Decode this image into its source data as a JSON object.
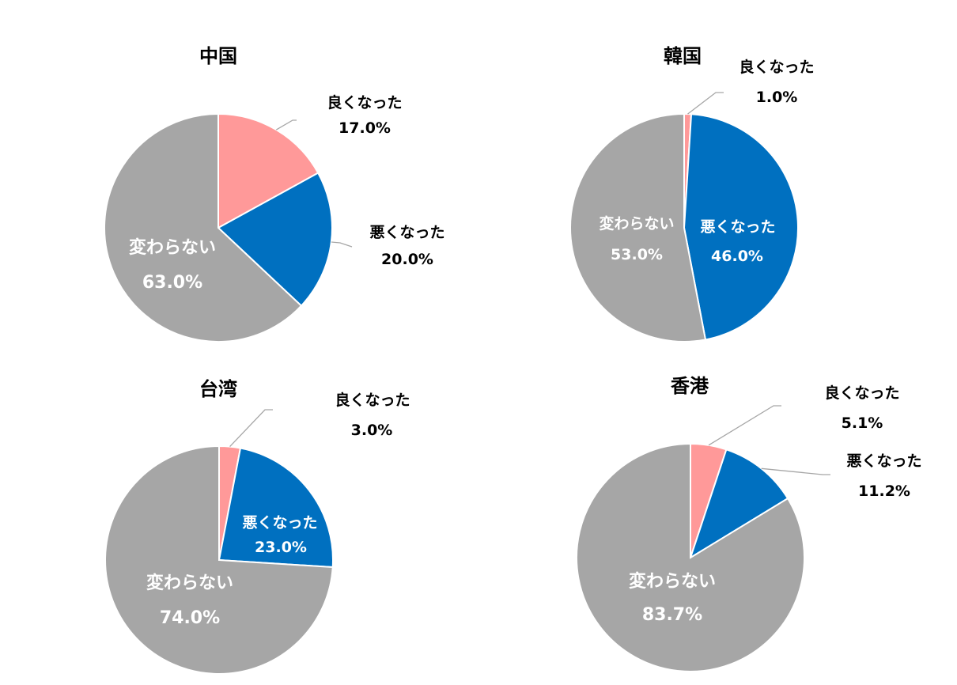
{
  "colors": {
    "better": "#FF9999",
    "worse": "#0070C0",
    "same": "#A6A6A6",
    "leader": "#A6A6A6",
    "white": "#FFFFFF",
    "black": "#000000"
  },
  "chart_data": [
    {
      "type": "pie",
      "title": "中国",
      "categories": [
        "良くなった",
        "悪くなった",
        "変わらない"
      ],
      "values": [
        17.0,
        20.0,
        63.0
      ],
      "value_labels": [
        "17.0%",
        "20.0%",
        "63.0%"
      ]
    },
    {
      "type": "pie",
      "title": "韓国",
      "categories": [
        "良くなった",
        "悪くなった",
        "変わらない"
      ],
      "values": [
        1.0,
        46.0,
        53.0
      ],
      "value_labels": [
        "1.0%",
        "46.0%",
        "53.0%"
      ]
    },
    {
      "type": "pie",
      "title": "台湾",
      "categories": [
        "良くなった",
        "悪くなった",
        "変わらない"
      ],
      "values": [
        3.0,
        23.0,
        74.0
      ],
      "value_labels": [
        "3.0%",
        "23.0%",
        "74.0%"
      ]
    },
    {
      "type": "pie",
      "title": "香港",
      "categories": [
        "良くなった",
        "悪くなった",
        "変わらない"
      ],
      "values": [
        5.1,
        11.2,
        83.7
      ],
      "value_labels": [
        "5.1%",
        "11.2%",
        "83.7%"
      ]
    }
  ]
}
